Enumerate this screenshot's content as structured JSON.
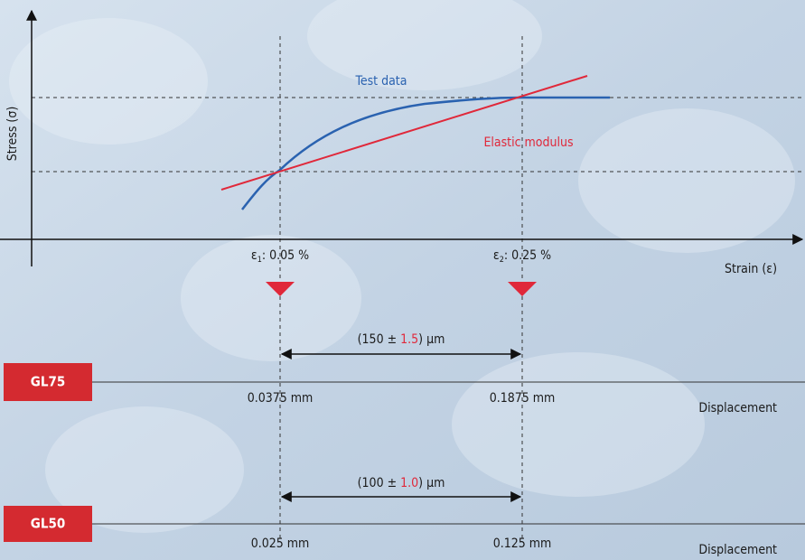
{
  "stress_axis_label": "Stress (σ)",
  "strain_axis_label": "Strain (ε)",
  "test_data_label": "Test data",
  "elastic_modulus_label": "Elastic modulus",
  "strain_markers": [
    {
      "symbol": "ε",
      "subscript": "1",
      "value": ": 0.05 %"
    },
    {
      "symbol": "ε",
      "subscript": "2",
      "value": ": 0.25 %"
    }
  ],
  "gauges": [
    {
      "name": "GL75",
      "span": {
        "prefix": "(150 ±",
        "tolerance": "1.5",
        "suffix": ") μm"
      },
      "start": "0.0375 mm",
      "end": "0.1875 mm",
      "axis_label": "Displacement"
    },
    {
      "name": "GL50",
      "span": {
        "prefix": "(100 ±",
        "tolerance": "1.0",
        "suffix": ") μm"
      },
      "start": "0.025 mm",
      "end": "0.125 mm",
      "axis_label": "Displacement"
    }
  ]
}
